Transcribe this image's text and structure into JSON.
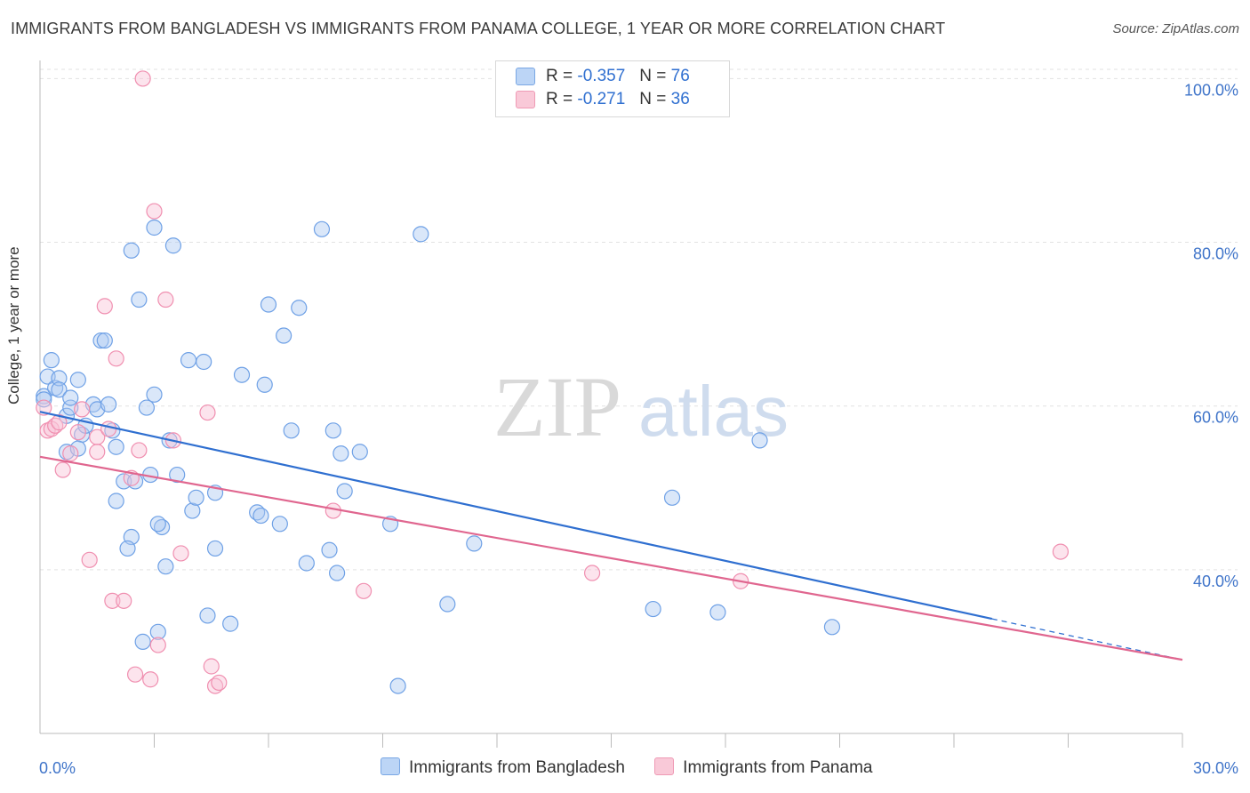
{
  "title": "IMMIGRANTS FROM BANGLADESH VS IMMIGRANTS FROM PANAMA COLLEGE, 1 YEAR OR MORE CORRELATION CHART",
  "source": "Source: ZipAtlas.com",
  "watermark": {
    "zip": "ZIP",
    "atlas": "atlas"
  },
  "legend_top": [
    {
      "r_label": "R =",
      "r_value": "-0.357",
      "n_label": "N =",
      "n_value": "76"
    },
    {
      "r_label": "R =",
      "r_value": "-0.271",
      "n_label": "N =",
      "n_value": "36"
    }
  ],
  "legend_bottom": [
    "Immigrants from Bangladesh",
    "Immigrants from Panama"
  ],
  "chart_data": {
    "type": "scatter",
    "title": "IMMIGRANTS FROM BANGLADESH VS IMMIGRANTS FROM PANAMA COLLEGE, 1 YEAR OR MORE CORRELATION CHART",
    "xlabel": "",
    "ylabel": "College, 1 year or more",
    "xlim": [
      0,
      30
    ],
    "ylim": [
      20,
      102
    ],
    "x_tick_labels": [
      "0.0%",
      "30.0%"
    ],
    "y_ticks": [
      40,
      60,
      80,
      100
    ],
    "y_tick_labels": [
      "40.0%",
      "60.0%",
      "80.0%",
      "100.0%"
    ],
    "grid": true,
    "legend_placement": "bottom",
    "colors": {
      "bangladesh": "#6fa1e6",
      "panama": "#f08fb0",
      "bangladesh_line": "#2f6fd0",
      "panama_line": "#e0668f"
    },
    "series": [
      {
        "name": "Immigrants from Bangladesh",
        "r": -0.357,
        "n": 76,
        "trend": {
          "x": [
            0,
            25
          ],
          "y": [
            59.3,
            34.0
          ],
          "dashed_to": [
            30,
            29.0
          ]
        },
        "points": [
          [
            0.1,
            61.2
          ],
          [
            0.1,
            60.8
          ],
          [
            0.2,
            63.6
          ],
          [
            0.3,
            65.6
          ],
          [
            0.4,
            62.2
          ],
          [
            0.5,
            63.4
          ],
          [
            0.5,
            62.0
          ],
          [
            0.7,
            58.8
          ],
          [
            0.8,
            59.8
          ],
          [
            0.8,
            61.0
          ],
          [
            1.0,
            63.2
          ],
          [
            1.1,
            56.5
          ],
          [
            0.7,
            54.4
          ],
          [
            1.0,
            54.8
          ],
          [
            1.2,
            57.6
          ],
          [
            1.4,
            60.2
          ],
          [
            1.5,
            59.6
          ],
          [
            1.6,
            68.0
          ],
          [
            1.7,
            68.0
          ],
          [
            1.8,
            60.2
          ],
          [
            1.9,
            57.0
          ],
          [
            2.0,
            55.0
          ],
          [
            2.2,
            50.8
          ],
          [
            2.0,
            48.4
          ],
          [
            2.5,
            50.8
          ],
          [
            2.4,
            44.0
          ],
          [
            2.3,
            42.6
          ],
          [
            2.4,
            79.0
          ],
          [
            2.6,
            73.0
          ],
          [
            2.8,
            59.8
          ],
          [
            2.9,
            51.6
          ],
          [
            3.0,
            61.4
          ],
          [
            3.0,
            81.8
          ],
          [
            3.2,
            45.2
          ],
          [
            3.1,
            45.6
          ],
          [
            3.3,
            40.4
          ],
          [
            3.4,
            55.8
          ],
          [
            3.5,
            79.6
          ],
          [
            3.6,
            51.6
          ],
          [
            3.9,
            65.6
          ],
          [
            4.0,
            47.2
          ],
          [
            4.1,
            48.8
          ],
          [
            4.3,
            65.4
          ],
          [
            4.4,
            34.4
          ],
          [
            4.6,
            49.4
          ],
          [
            4.6,
            42.6
          ],
          [
            5.0,
            33.4
          ],
          [
            5.3,
            63.8
          ],
          [
            5.7,
            47.0
          ],
          [
            5.8,
            46.6
          ],
          [
            5.9,
            62.6
          ],
          [
            6.0,
            72.4
          ],
          [
            6.3,
            45.6
          ],
          [
            6.4,
            68.6
          ],
          [
            6.6,
            57.0
          ],
          [
            6.8,
            72.0
          ],
          [
            7.0,
            40.8
          ],
          [
            7.4,
            81.6
          ],
          [
            7.6,
            42.4
          ],
          [
            7.7,
            57.0
          ],
          [
            7.8,
            39.6
          ],
          [
            7.9,
            54.2
          ],
          [
            8.0,
            49.6
          ],
          [
            8.4,
            54.4
          ],
          [
            9.2,
            45.6
          ],
          [
            9.4,
            25.8
          ],
          [
            10.0,
            81.0
          ],
          [
            10.7,
            35.8
          ],
          [
            11.4,
            43.2
          ],
          [
            16.1,
            35.2
          ],
          [
            16.6,
            48.8
          ],
          [
            17.8,
            34.8
          ],
          [
            18.9,
            55.8
          ],
          [
            20.8,
            33.0
          ],
          [
            3.1,
            32.4
          ],
          [
            2.7,
            31.2
          ]
        ]
      },
      {
        "name": "Immigrants from Panama",
        "r": -0.271,
        "n": 36,
        "trend": {
          "x": [
            0,
            30
          ],
          "y": [
            53.8,
            29.0
          ]
        },
        "points": [
          [
            0.1,
            59.8
          ],
          [
            0.2,
            57.0
          ],
          [
            0.3,
            57.2
          ],
          [
            0.4,
            57.6
          ],
          [
            0.5,
            58.0
          ],
          [
            0.6,
            52.2
          ],
          [
            0.8,
            54.2
          ],
          [
            1.0,
            56.8
          ],
          [
            1.1,
            59.6
          ],
          [
            1.3,
            41.2
          ],
          [
            1.5,
            56.2
          ],
          [
            1.7,
            72.2
          ],
          [
            1.8,
            57.2
          ],
          [
            1.9,
            36.2
          ],
          [
            2.0,
            65.8
          ],
          [
            2.2,
            36.2
          ],
          [
            2.4,
            51.2
          ],
          [
            2.5,
            27.2
          ],
          [
            2.6,
            54.6
          ],
          [
            2.7,
            100.0
          ],
          [
            2.9,
            26.6
          ],
          [
            3.0,
            83.8
          ],
          [
            3.1,
            30.8
          ],
          [
            3.3,
            73.0
          ],
          [
            3.5,
            55.8
          ],
          [
            3.7,
            42.0
          ],
          [
            4.4,
            59.2
          ],
          [
            4.5,
            28.2
          ],
          [
            4.6,
            25.8
          ],
          [
            4.7,
            26.2
          ],
          [
            7.7,
            47.2
          ],
          [
            8.5,
            37.4
          ],
          [
            14.5,
            39.6
          ],
          [
            18.4,
            38.6
          ],
          [
            26.8,
            42.2
          ],
          [
            1.5,
            54.4
          ]
        ]
      }
    ]
  }
}
